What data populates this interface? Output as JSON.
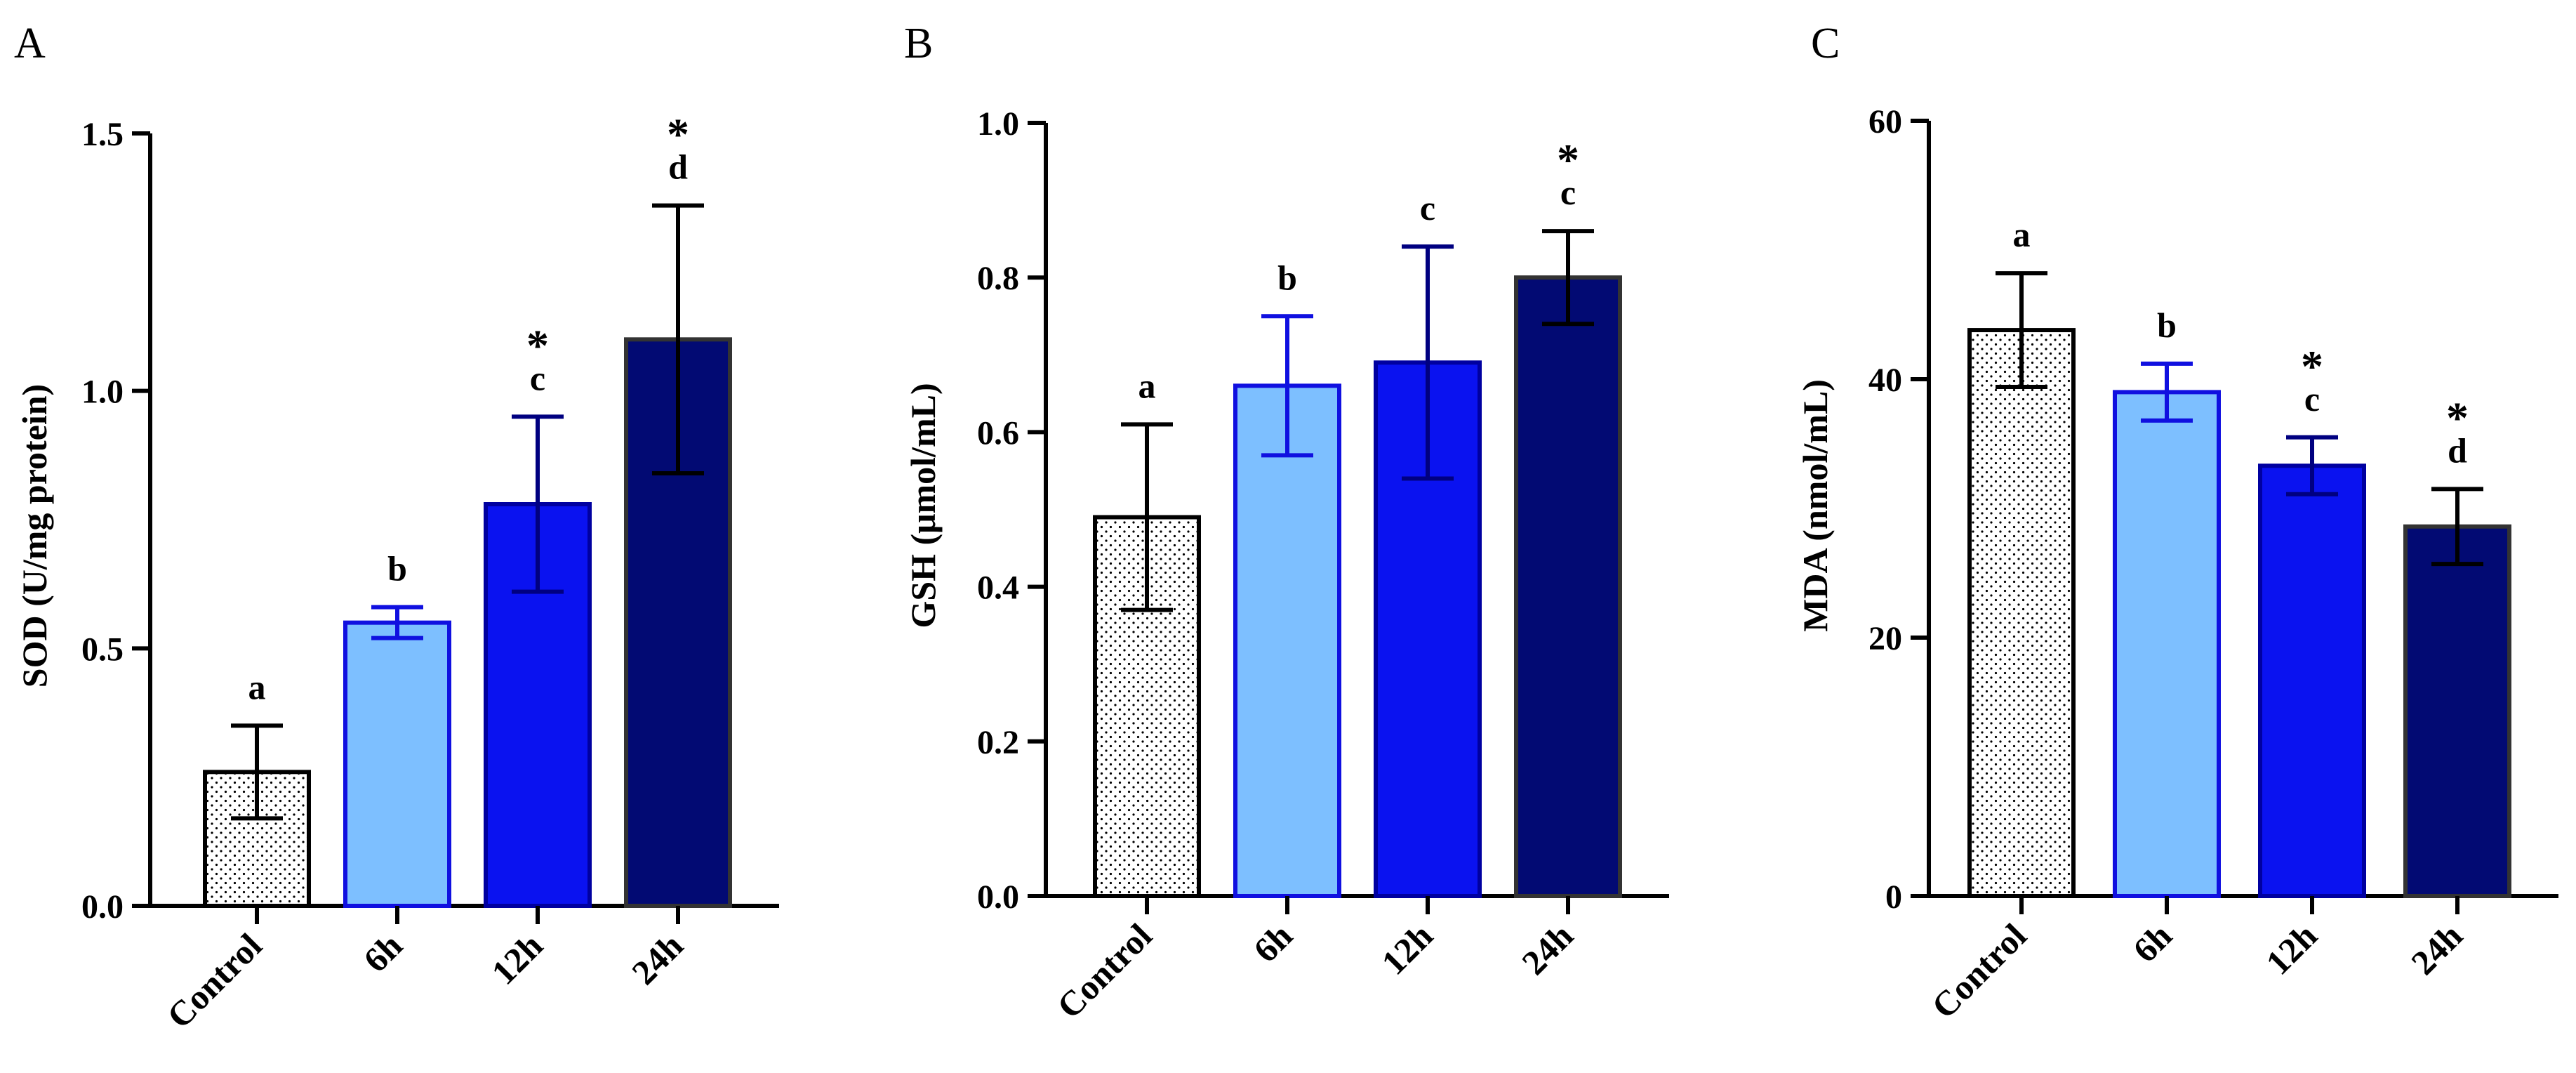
{
  "figure": {
    "panels": [
      "A",
      "B",
      "C"
    ]
  },
  "chart_data": [
    {
      "panel": "A",
      "type": "bar",
      "title": "",
      "xlabel": "",
      "ylabel": "SOD (U/mg protein)",
      "ylim": [
        0,
        1.5
      ],
      "yticks": [
        0.0,
        0.5,
        1.0,
        1.5
      ],
      "ytick_labels": [
        "0.0",
        "0.5",
        "1.0",
        "1.5"
      ],
      "categories": [
        "Control",
        "6h",
        "12h",
        "24h"
      ],
      "values": [
        0.26,
        0.55,
        0.78,
        1.1
      ],
      "errors": [
        0.09,
        0.03,
        0.17,
        0.26
      ],
      "significance_letters": [
        "a",
        "b",
        "c",
        "d"
      ],
      "stars": [
        "",
        "",
        "*",
        "*"
      ],
      "fill_colors": [
        "pattern",
        "#7dbfff",
        "#0a12f0",
        "#020a73"
      ],
      "edge_colors": [
        "#000000",
        "#1010e0",
        "#0000a0",
        "#333333"
      ],
      "error_colors": [
        "#000000",
        "#1010e0",
        "#000080",
        "#000000"
      ]
    },
    {
      "panel": "B",
      "type": "bar",
      "title": "",
      "xlabel": "",
      "ylabel": "GSH (μmol/mL)",
      "ylim": [
        0,
        1.0
      ],
      "yticks": [
        0.0,
        0.2,
        0.4,
        0.6,
        0.8,
        1.0
      ],
      "ytick_labels": [
        "0.0",
        "0.2",
        "0.4",
        "0.6",
        "0.8",
        "1.0"
      ],
      "categories": [
        "Control",
        "6h",
        "12h",
        "24h"
      ],
      "values": [
        0.49,
        0.66,
        0.69,
        0.8
      ],
      "errors": [
        0.12,
        0.09,
        0.15,
        0.06
      ],
      "significance_letters": [
        "a",
        "b",
        "c",
        "c"
      ],
      "stars": [
        "",
        "",
        "",
        "*"
      ],
      "fill_colors": [
        "pattern",
        "#7dbfff",
        "#0a12f0",
        "#020a73"
      ],
      "edge_colors": [
        "#000000",
        "#1010e0",
        "#0000a0",
        "#333333"
      ],
      "error_colors": [
        "#000000",
        "#1010e0",
        "#000080",
        "#000000"
      ]
    },
    {
      "panel": "C",
      "type": "bar",
      "title": "",
      "xlabel": "",
      "ylabel": "MDA (nmol/mL)",
      "ylim": [
        0,
        60
      ],
      "yticks": [
        0,
        20,
        40,
        60
      ],
      "ytick_labels": [
        "0",
        "20",
        "40",
        "60"
      ],
      "categories": [
        "Control",
        "6h",
        "12h",
        "24h"
      ],
      "values": [
        43.8,
        39.0,
        33.3,
        28.6
      ],
      "errors": [
        4.4,
        2.2,
        2.2,
        2.9
      ],
      "significance_letters": [
        "a",
        "b",
        "c",
        "d"
      ],
      "stars": [
        "",
        "",
        "*",
        "*"
      ],
      "fill_colors": [
        "pattern",
        "#7dbfff",
        "#0a12f0",
        "#020a73"
      ],
      "edge_colors": [
        "#000000",
        "#1010e0",
        "#0000a0",
        "#333333"
      ],
      "error_colors": [
        "#000000",
        "#1010e0",
        "#000080",
        "#000000"
      ]
    }
  ]
}
